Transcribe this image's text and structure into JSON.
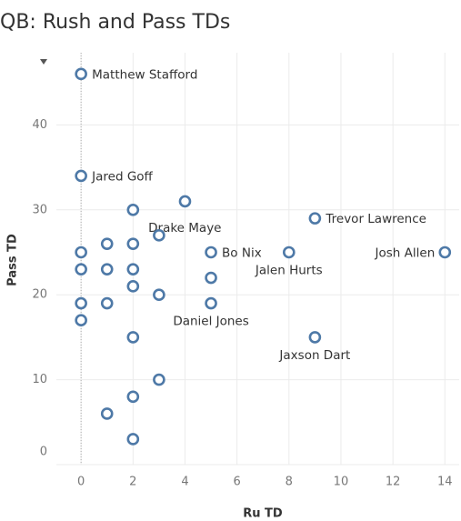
{
  "chart_data": {
    "type": "scatter",
    "title": "QB: Rush and Pass TDs",
    "x_label": "Ru TD",
    "y_label": "Pass TD",
    "color": "#4e79a7",
    "x": [
      0,
      0,
      4,
      2,
      9,
      3,
      1,
      2,
      0,
      5,
      8,
      14,
      0,
      1,
      2,
      5,
      2,
      3,
      0,
      1,
      5,
      0,
      2,
      9,
      3,
      2,
      1,
      2
    ],
    "values": [
      46,
      34,
      31,
      30,
      29,
      27,
      26,
      26,
      25,
      25,
      25,
      25,
      23,
      23,
      23,
      22,
      21,
      20,
      19,
      19,
      19,
      17,
      15,
      15,
      10,
      8,
      6,
      3
    ],
    "labels": [
      "Matthew Stafford",
      "Jared Goff",
      null,
      "Drake Maye",
      "Trevor Lawrence",
      null,
      null,
      null,
      null,
      "Bo Nix",
      "Jalen Hurts",
      "Josh Allen",
      null,
      null,
      null,
      null,
      null,
      null,
      null,
      null,
      "Daniel Jones",
      null,
      null,
      "Jaxson Dart",
      null,
      null,
      null,
      null
    ],
    "xlim": [
      -0.95,
      14.55
    ],
    "ylim": [
      0,
      48.5
    ],
    "xticks": [
      0,
      2,
      4,
      6,
      8,
      10,
      12,
      14
    ],
    "yticks": [
      0,
      10,
      20,
      30,
      40
    ],
    "grid": true
  }
}
